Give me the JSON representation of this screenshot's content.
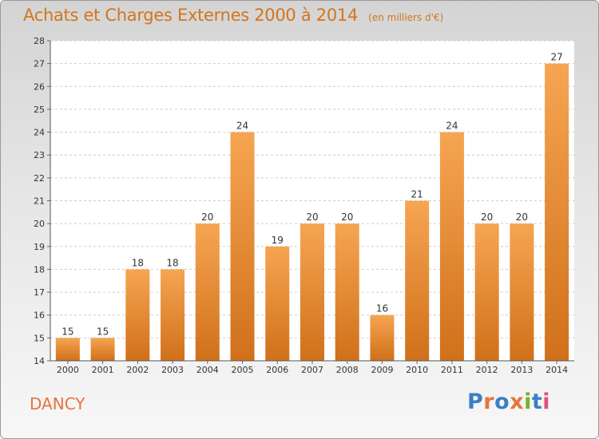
{
  "title": "Achats et Charges Externes 2000 à 2014",
  "subtitle": "(en milliers d'€)",
  "commune": "DANCY",
  "logo": {
    "letters": [
      "P",
      "r",
      "o",
      "x",
      "i",
      "t",
      "i"
    ],
    "colors": [
      "#3a7fc4",
      "#e8743b",
      "#3a7fc4",
      "#e8743b",
      "#78b030",
      "#3a7fc4",
      "#d94f8a"
    ]
  },
  "colors": {
    "title": "#d2751e",
    "bar_light": "#f6a552",
    "bar_dark": "#d0701a",
    "commune": "#e8743b"
  },
  "chart_data": {
    "type": "bar",
    "title": "Achats et Charges Externes 2000 à 2014",
    "subtitle": "(en milliers d'€)",
    "categories": [
      "2000",
      "2001",
      "2002",
      "2003",
      "2004",
      "2005",
      "2006",
      "2007",
      "2008",
      "2009",
      "2010",
      "2011",
      "2012",
      "2013",
      "2014"
    ],
    "values": [
      15,
      15,
      18,
      18,
      20,
      24,
      19,
      20,
      20,
      16,
      21,
      24,
      20,
      20,
      27
    ],
    "ylim": [
      14,
      28
    ],
    "yticks": [
      14,
      15,
      16,
      17,
      18,
      19,
      20,
      21,
      22,
      23,
      24,
      25,
      26,
      27,
      28
    ],
    "grid": true,
    "data_labels": true
  }
}
